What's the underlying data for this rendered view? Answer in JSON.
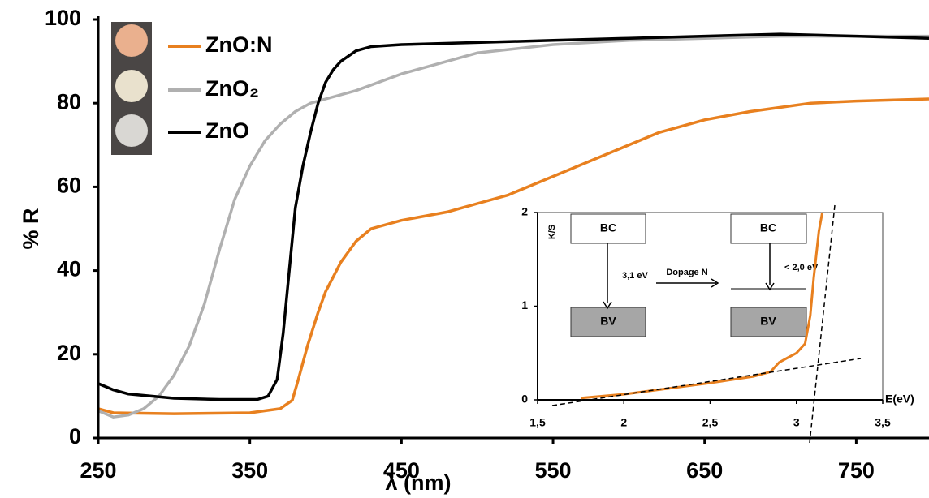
{
  "chart_data": [
    {
      "type": "line",
      "xlabel": "λ (nm)",
      "ylabel": "% R",
      "xlim": [
        250,
        798
      ],
      "ylim": [
        0,
        100
      ],
      "xticks": [
        250,
        350,
        450,
        550,
        650,
        750
      ],
      "yticks": [
        0,
        20,
        40,
        60,
        80,
        100
      ],
      "series": [
        {
          "name": "ZnO:N",
          "color": "#e8801f",
          "x": [
            250,
            260,
            300,
            350,
            370,
            378,
            382,
            388,
            395,
            400,
            410,
            420,
            430,
            450,
            480,
            500,
            520,
            540,
            560,
            580,
            600,
            620,
            650,
            680,
            700,
            720,
            750,
            798
          ],
          "values": [
            7,
            6,
            5.8,
            6,
            7,
            9,
            14,
            22,
            30,
            35,
            42,
            47,
            50,
            52,
            54,
            56,
            58,
            61,
            64,
            67,
            70,
            73,
            76,
            78,
            79,
            80,
            80.5,
            81
          ]
        },
        {
          "name": "ZnO₂",
          "color": "#b0b0b0",
          "x": [
            250,
            260,
            270,
            280,
            290,
            300,
            310,
            320,
            330,
            340,
            350,
            360,
            370,
            380,
            390,
            400,
            420,
            450,
            500,
            550,
            600,
            650,
            700,
            750,
            798
          ],
          "values": [
            6.5,
            5,
            5.5,
            7,
            10,
            15,
            22,
            32,
            45,
            57,
            65,
            71,
            75,
            78,
            80,
            81,
            83,
            87,
            92,
            94,
            95,
            95.5,
            96,
            96,
            96
          ]
        },
        {
          "name": "ZnO",
          "color": "#000000",
          "x": [
            250,
            260,
            270,
            300,
            330,
            355,
            362,
            368,
            372,
            376,
            380,
            385,
            390,
            395,
            400,
            405,
            410,
            420,
            430,
            450,
            500,
            550,
            600,
            650,
            700,
            750,
            798
          ],
          "values": [
            13,
            11.5,
            10.5,
            9.5,
            9.2,
            9.2,
            10,
            14,
            25,
            40,
            55,
            65,
            73,
            80,
            85,
            88,
            90,
            92.5,
            93.5,
            94,
            94.5,
            95,
            95.5,
            96,
            96.5,
            96,
            95.5
          ]
        }
      ]
    },
    {
      "type": "line",
      "xlabel": "E(eV)",
      "ylabel": "K/S",
      "xlim": [
        1.5,
        3.5
      ],
      "ylim": [
        0,
        2
      ],
      "xticks": [
        {
          "value": 1.5,
          "label": "1,5"
        },
        2,
        {
          "value": 2.5,
          "label": "2,5"
        },
        3,
        {
          "value": 3.5,
          "label": "3,5"
        }
      ],
      "yticks": [
        0,
        1,
        2
      ],
      "color": "#e8801f",
      "x": [
        1.75,
        2,
        2.25,
        2.5,
        2.75,
        2.85,
        2.9,
        2.95,
        3.0,
        3.05,
        3.08,
        3.1,
        3.13,
        3.15
      ],
      "values": [
        0.02,
        0.06,
        0.12,
        0.18,
        0.25,
        0.3,
        0.4,
        0.45,
        0.5,
        0.6,
        0.9,
        1.3,
        1.8,
        2
      ],
      "annotations": [
        "BC",
        "BV",
        "3,1 eV",
        "Dopage N",
        "BC",
        "BV",
        "< 2,0 eV"
      ]
    }
  ]
}
